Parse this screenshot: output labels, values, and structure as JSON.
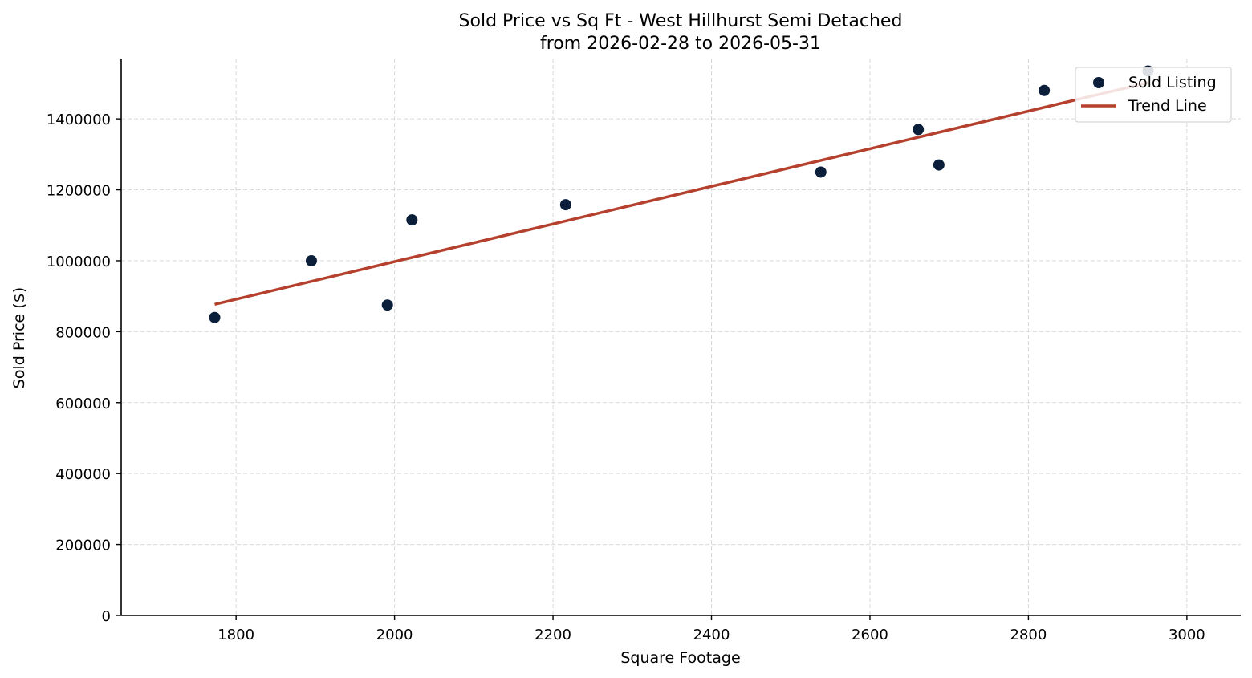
{
  "chart_data": {
    "type": "scatter",
    "title": "Sold Price vs Sq Ft - West Hillhurst Semi Detached",
    "subtitle": "from 2026-02-28 to 2026-05-31",
    "xlabel": "Square Footage",
    "ylabel": "Sold Price ($)",
    "xlim": [
      1655,
      3068
    ],
    "ylim": [
      0,
      1570000
    ],
    "x_ticks": [
      1800,
      2000,
      2200,
      2400,
      2600,
      2800,
      3000
    ],
    "x_tick_labels": [
      "1800",
      "2000",
      "2200",
      "2400",
      "2600",
      "2800",
      "3000"
    ],
    "y_ticks": [
      0,
      200000,
      400000,
      600000,
      800000,
      1000000,
      1200000,
      1400000
    ],
    "y_tick_labels": [
      "0",
      "200000",
      "400000",
      "600000",
      "800000",
      "1000000",
      "1200000",
      "1400000"
    ],
    "grid": true,
    "legend_position": "top-right",
    "series": [
      {
        "name": "Sold Listing",
        "kind": "scatter",
        "color": "#0b1f3a",
        "x": [
          1773,
          1895,
          1991,
          2022,
          2216,
          2538,
          2661,
          2687,
          2820,
          2951
        ],
        "y": [
          840000,
          1000000,
          875000,
          1115000,
          1158000,
          1250000,
          1370000,
          1270000,
          1480000,
          1535000
        ]
      },
      {
        "name": "Trend Line",
        "kind": "line",
        "color": "#b5402e",
        "x": [
          1773,
          2951
        ],
        "y": [
          877000,
          1502000
        ]
      }
    ]
  }
}
